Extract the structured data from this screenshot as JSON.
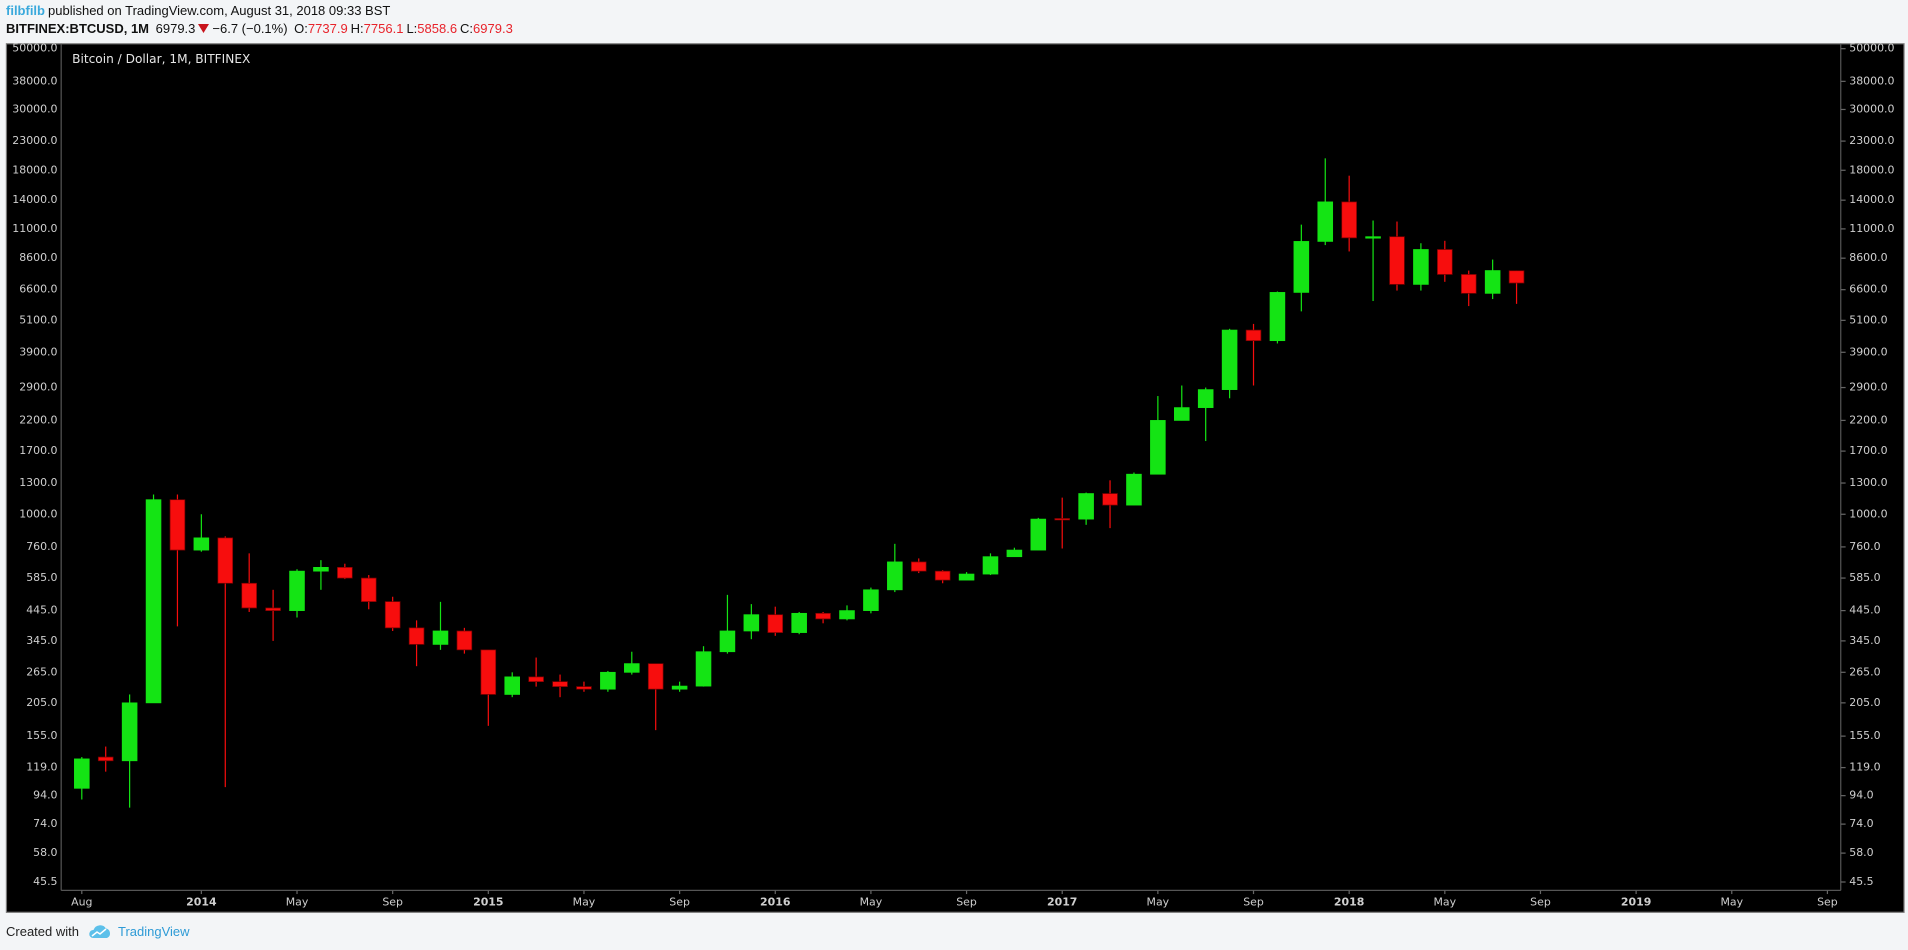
{
  "header": {
    "author": "filbfilb",
    "published": "published on TradingView.com, August 31, 2018 09:33 BST",
    "symbol": "BITFINEX:BTCUSD, 1M",
    "last": "6979.3",
    "change": "−6.7 (−0.1%)",
    "ohlc": [
      {
        "label": "O:",
        "value": "7737.9"
      },
      {
        "label": "H:",
        "value": "7756.1"
      },
      {
        "label": "L:",
        "value": "5858.6"
      },
      {
        "label": "C:",
        "value": "6979.3"
      }
    ]
  },
  "footer": {
    "created": "Created with",
    "brand": "TradingView"
  },
  "chart_data": {
    "type": "candlestick",
    "title": "Bitcoin / Dollar, 1M, BITFINEX",
    "log_scale": true,
    "grid": false,
    "up_color": "#14e414",
    "down_color": "#f70d0d",
    "x": [
      "2013-08",
      "2013-09",
      "2013-10",
      "2013-11",
      "2013-12",
      "2014-01",
      "2014-02",
      "2014-03",
      "2014-04",
      "2014-05",
      "2014-06",
      "2014-07",
      "2014-08",
      "2014-09",
      "2014-10",
      "2014-11",
      "2014-12",
      "2015-01",
      "2015-02",
      "2015-03",
      "2015-04",
      "2015-05",
      "2015-06",
      "2015-07",
      "2015-08",
      "2015-09",
      "2015-10",
      "2015-11",
      "2015-12",
      "2016-01",
      "2016-02",
      "2016-03",
      "2016-04",
      "2016-05",
      "2016-06",
      "2016-07",
      "2016-08",
      "2016-09",
      "2016-10",
      "2016-11",
      "2016-12",
      "2017-01",
      "2017-02",
      "2017-03",
      "2017-04",
      "2017-05",
      "2017-06",
      "2017-07",
      "2017-08",
      "2017-09",
      "2017-10",
      "2017-11",
      "2017-12",
      "2018-01",
      "2018-02",
      "2018-03",
      "2018-04",
      "2018-05",
      "2018-06",
      "2018-07",
      "2018-08"
    ],
    "open": [
      100,
      130,
      126,
      205,
      1130,
      740,
      820,
      560,
      455,
      445,
      620,
      640,
      585,
      480,
      385,
      335,
      375,
      320,
      220,
      255,
      245,
      235,
      230,
      265,
      285,
      230,
      236,
      315,
      375,
      430,
      370,
      435,
      415,
      445,
      530,
      670,
      620,
      575,
      605,
      700,
      740,
      965,
      960,
      1190,
      1080,
      1400,
      2200,
      2450,
      2850,
      4700,
      4300,
      6450,
      9900,
      13800,
      10200,
      10300,
      6900,
      9250,
      7500,
      6400,
      7737.9
    ],
    "high": [
      130,
      142,
      220,
      1180,
      1180,
      1000,
      830,
      720,
      530,
      630,
      680,
      660,
      600,
      500,
      410,
      479,
      385,
      320,
      265,
      300,
      260,
      245,
      268,
      315,
      285,
      245,
      330,
      508,
      470,
      460,
      440,
      440,
      465,
      540,
      780,
      690,
      625,
      615,
      720,
      755,
      970,
      1150,
      1200,
      1330,
      1420,
      2700,
      2950,
      2900,
      4750,
      4950,
      6500,
      11400,
      19900,
      17200,
      11800,
      11700,
      9750,
      9950,
      7750,
      8500,
      7756.1
    ],
    "low": [
      91,
      115,
      85,
      205,
      390,
      730,
      101,
      440,
      345,
      420,
      530,
      580,
      450,
      375,
      279,
      320,
      310,
      169,
      215,
      235,
      215,
      225,
      225,
      260,
      163,
      225,
      235,
      310,
      350,
      360,
      365,
      400,
      410,
      435,
      520,
      610,
      560,
      575,
      600,
      700,
      740,
      750,
      915,
      890,
      1080,
      1400,
      2200,
      1850,
      2650,
      2950,
      4200,
      5500,
      9600,
      9100,
      6000,
      6550,
      6550,
      7050,
      5750,
      6100,
      5858.6
    ],
    "close": [
      128,
      126,
      205,
      1130,
      740,
      820,
      560,
      455,
      445,
      620,
      640,
      585,
      480,
      385,
      335,
      375,
      320,
      220,
      255,
      245,
      235,
      230,
      265,
      285,
      230,
      236,
      315,
      375,
      430,
      370,
      435,
      415,
      445,
      530,
      670,
      620,
      575,
      605,
      700,
      740,
      960,
      960,
      1190,
      1080,
      1400,
      2200,
      2450,
      2850,
      4700,
      4300,
      6450,
      9900,
      13800,
      10200,
      10300,
      6900,
      9250,
      7500,
      6400,
      7750,
      6979.3
    ],
    "xlim": [
      "2013-07",
      "2019-10"
    ],
    "xticks": [
      {
        "value": "2013-08",
        "label": "Aug"
      },
      {
        "value": "2014-01",
        "label": "2014"
      },
      {
        "value": "2014-05",
        "label": "May"
      },
      {
        "value": "2014-09",
        "label": "Sep"
      },
      {
        "value": "2015-01",
        "label": "2015"
      },
      {
        "value": "2015-05",
        "label": "May"
      },
      {
        "value": "2015-09",
        "label": "Sep"
      },
      {
        "value": "2016-01",
        "label": "2016"
      },
      {
        "value": "2016-05",
        "label": "May"
      },
      {
        "value": "2016-09",
        "label": "Sep"
      },
      {
        "value": "2017-01",
        "label": "2017"
      },
      {
        "value": "2017-05",
        "label": "May"
      },
      {
        "value": "2017-09",
        "label": "Sep"
      },
      {
        "value": "2018-01",
        "label": "2018"
      },
      {
        "value": "2018-05",
        "label": "May"
      },
      {
        "value": "2018-09",
        "label": "Sep"
      },
      {
        "value": "2019-01",
        "label": "2019"
      },
      {
        "value": "2019-05",
        "label": "May"
      },
      {
        "value": "2019-09",
        "label": "Sep"
      }
    ],
    "ylim": [
      42.4,
      52100
    ],
    "yticks": [
      45.5,
      {
        "value": 58,
        "label": "58.0"
      },
      {
        "value": 74,
        "label": "74.0"
      },
      {
        "value": 94,
        "label": "94.0"
      },
      {
        "value": 119,
        "label": "119.0"
      },
      {
        "value": 155,
        "label": "155.0"
      },
      {
        "value": 205,
        "label": "205.0"
      },
      {
        "value": 265,
        "label": "265.0"
      },
      {
        "value": 345,
        "label": "345.0"
      },
      {
        "value": 445,
        "label": "445.0"
      },
      {
        "value": 585,
        "label": "585.0"
      },
      {
        "value": 760,
        "label": "760.0"
      },
      {
        "value": 1000,
        "label": "1000.0"
      },
      {
        "value": 1300,
        "label": "1300.0"
      },
      {
        "value": 1700,
        "label": "1700.0"
      },
      {
        "value": 2200,
        "label": "2200.0"
      },
      {
        "value": 2900,
        "label": "2900.0"
      },
      {
        "value": 3900,
        "label": "3900.0"
      },
      {
        "value": 5100,
        "label": "5100.0"
      },
      {
        "value": 6600,
        "label": "6600.0"
      },
      {
        "value": 8600,
        "label": "8600.0"
      },
      {
        "value": 11000,
        "label": "11000.0"
      },
      {
        "value": 14000,
        "label": "14000.0"
      },
      {
        "value": 18000,
        "label": "18000.0"
      },
      {
        "value": 23000,
        "label": "23000.0"
      },
      {
        "value": 30000,
        "label": "30000.0"
      },
      {
        "value": 38000,
        "label": "38000.0"
      },
      {
        "value": 50000,
        "label": "50000.0"
      }
    ]
  }
}
